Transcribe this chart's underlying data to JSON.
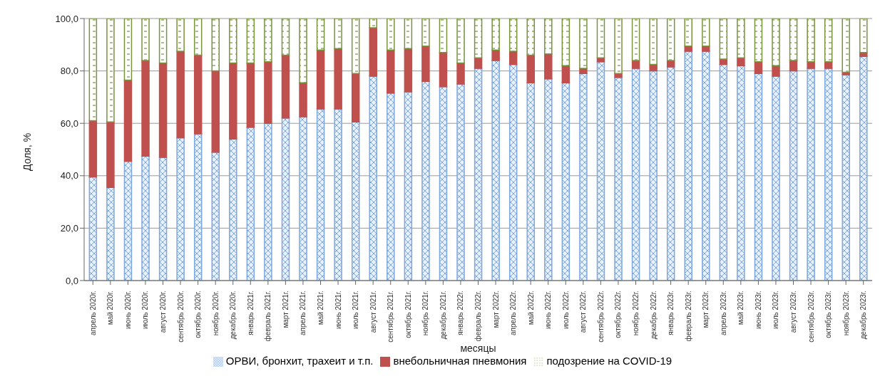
{
  "chart_data": {
    "type": "bar",
    "stacked": true,
    "xlabel": "месяцы",
    "ylabel": "Доля, %",
    "categories": [
      "апрель 2020г.",
      "май 2020г.",
      "июнь 2020г.",
      "июль 2020г.",
      "август 2020г.",
      "сентябрь 2020г.",
      "октябрь 2020г.",
      "ноябрь 2020г.",
      "декабрь 2020г.",
      "январь 2021г.",
      "февраль 2021г.",
      "март 2021г.",
      "апрель 2021г.",
      "май 2021г.",
      "июнь 2021г.",
      "июль 2021г.",
      "август 2021г.",
      "сентябрь 2021г.",
      "октябрь 2021г.",
      "ноябрь 2021г.",
      "декабрь 2021г.",
      "январь 2022г.",
      "февраль 2022г.",
      "март 2022г.",
      "апрель 2022г.",
      "май 2022г.",
      "июнь 2022г.",
      "июль 2022г.",
      "август 2022г.",
      "сентябрь 2022г.",
      "октябрь 2022г.",
      "ноябрь 2022г.",
      "декабрь 2022г.",
      "январь 2023г.",
      "февраль 2023г.",
      "март 2023г.",
      "апрель 2023г.",
      "май 2023г.",
      "июнь 2023г.",
      "июль 2023г.",
      "август 2023г.",
      "сентябрь 2023г.",
      "октябрь 2023г.",
      "ноябрь 2023г.",
      "декабрь 2023г."
    ],
    "series": [
      {
        "name": "ОРВИ, бронхит, трахеит и т.п.",
        "color": "#7ea6e0",
        "values": [
          39.5,
          35.5,
          45.5,
          47.5,
          47,
          54.5,
          56,
          49,
          54,
          58.5,
          60,
          62,
          62.5,
          65.5,
          65.5,
          60.5,
          78,
          71.5,
          72,
          76,
          74,
          75,
          81,
          84,
          82.5,
          75.5,
          77,
          75.5,
          79,
          83.5,
          77.5,
          81,
          80,
          81.5,
          87.5,
          87.5,
          82.5,
          82,
          79,
          78,
          80,
          81,
          81,
          78.5,
          85.5
        ]
      },
      {
        "name": "внебольничная пневмония",
        "color": "#c0504d",
        "values": [
          21.5,
          25,
          31,
          36.5,
          36,
          33,
          30,
          31,
          29,
          24.5,
          23.5,
          24,
          13,
          22.5,
          23,
          18.5,
          18.5,
          16.5,
          16.5,
          13.5,
          13,
          8,
          4,
          4,
          5,
          10.5,
          9.5,
          6.5,
          2,
          1.5,
          1.5,
          3,
          2.5,
          2.5,
          2,
          2,
          2,
          3,
          4.5,
          4,
          4,
          2.5,
          2.5,
          1,
          1.5
        ]
      },
      {
        "name": "подозрение на COVID-19",
        "color": "#77933c",
        "values": [
          39,
          39.5,
          23.5,
          16,
          17,
          12.5,
          14,
          20,
          17,
          17,
          16.5,
          14,
          24.5,
          12,
          11.5,
          21,
          3.5,
          12,
          11.5,
          10.5,
          13,
          17,
          15,
          12,
          12.5,
          14,
          13.5,
          18,
          19,
          15,
          21,
          16,
          17.5,
          16,
          10.5,
          10.5,
          15.5,
          15,
          16.5,
          18,
          16,
          16.5,
          16.5,
          20.5,
          13
        ]
      }
    ],
    "ylim": [
      0,
      100
    ],
    "yticks": [
      {
        "value": 0,
        "label": "0,0"
      },
      {
        "value": 20,
        "label": "20,0"
      },
      {
        "value": 40,
        "label": "40,0"
      },
      {
        "value": 60,
        "label": "60,0"
      },
      {
        "value": 80,
        "label": "80,0"
      },
      {
        "value": 100,
        "label": "100,0"
      }
    ],
    "grid": "y",
    "legend": "bottom"
  }
}
